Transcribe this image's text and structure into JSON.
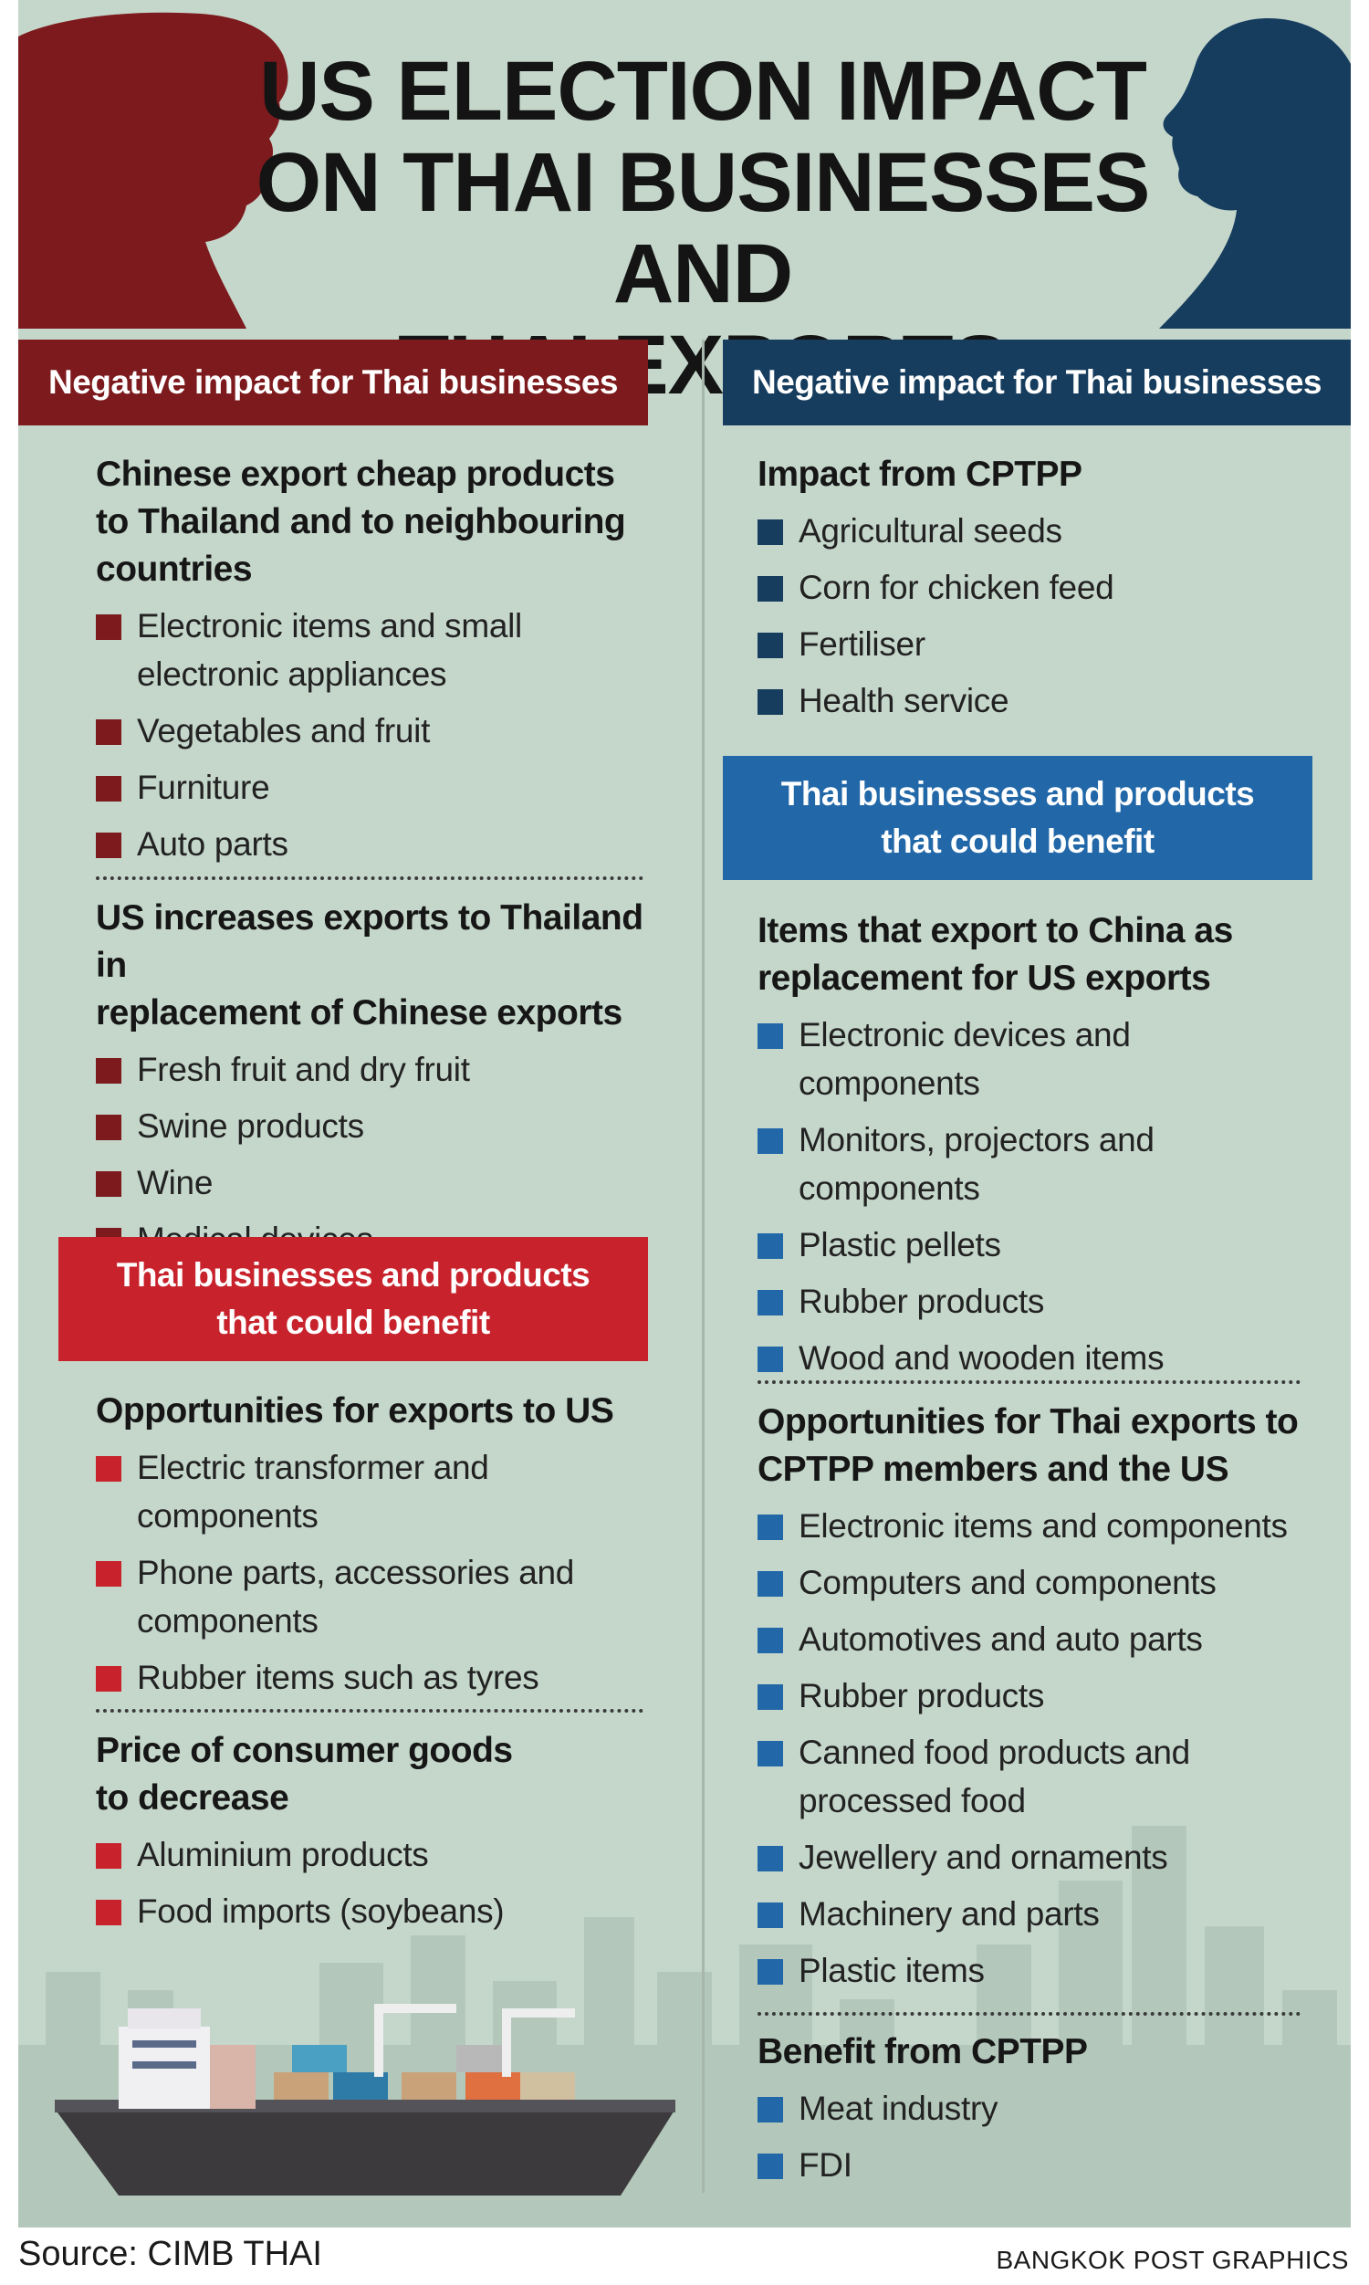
{
  "title": {
    "line1": "US ELECTION IMPACT",
    "line2": "ON THAI BUSINESSES AND",
    "line3": "THAI EXPORTS"
  },
  "colors": {
    "background": "#c5d7cb",
    "red_dark": "#7d1a1d",
    "red_bright": "#c8232c",
    "blue_dark": "#163d5e",
    "blue_bright": "#2268a8"
  },
  "left": {
    "negative_banner": "Negative impact for Thai businesses",
    "group1": {
      "heading_lines": [
        "Chinese export cheap products",
        "to Thailand and to neighbouring",
        "countries"
      ],
      "items": [
        [
          "Electronic items and small",
          "electronic appliances"
        ],
        [
          "Vegetables and fruit"
        ],
        [
          "Furniture"
        ],
        [
          "Auto parts"
        ]
      ]
    },
    "group2": {
      "heading_lines": [
        "US increases exports to Thailand in",
        "replacement of Chinese exports"
      ],
      "items": [
        [
          "Fresh fruit and dry fruit"
        ],
        [
          "Swine products"
        ],
        [
          "Wine"
        ],
        [
          "Medical devices"
        ]
      ]
    },
    "benefit_banner": [
      "Thai businesses and products",
      "that could benefit"
    ],
    "group3": {
      "heading_lines": [
        "Opportunities for exports to US"
      ],
      "items": [
        [
          "Electric transformer and",
          "components"
        ],
        [
          "Phone parts, accessories and",
          "components"
        ],
        [
          "Rubber items such as tyres"
        ]
      ]
    },
    "group4": {
      "heading_lines": [
        "Price of consumer goods",
        "to decrease"
      ],
      "items": [
        [
          "Aluminium products"
        ],
        [
          "Food imports (soybeans)"
        ]
      ]
    }
  },
  "right": {
    "negative_banner": "Negative impact for Thai businesses",
    "group1": {
      "heading_lines": [
        "Impact from CPTPP"
      ],
      "items": [
        [
          "Agricultural seeds"
        ],
        [
          "Corn for chicken feed"
        ],
        [
          "Fertiliser"
        ],
        [
          "Health service"
        ]
      ]
    },
    "benefit_banner": [
      "Thai businesses and products",
      "that could benefit"
    ],
    "group2": {
      "heading_lines": [
        "Items that export to China as",
        "replacement for US exports"
      ],
      "items": [
        [
          "Electronic devices and",
          "components"
        ],
        [
          "Monitors, projectors and",
          "components"
        ],
        [
          "Plastic pellets"
        ],
        [
          "Rubber products"
        ],
        [
          "Wood and wooden items"
        ]
      ]
    },
    "group3": {
      "heading_lines": [
        "Opportunities for Thai exports to",
        "CPTPP members and the US"
      ],
      "items": [
        [
          "Electronic items and components"
        ],
        [
          "Computers and components"
        ],
        [
          "Automotives and auto parts"
        ],
        [
          "Rubber products"
        ],
        [
          "Canned food products and",
          "processed food"
        ],
        [
          "Jewellery and ornaments"
        ],
        [
          "Machinery and parts"
        ],
        [
          "Plastic items"
        ]
      ]
    },
    "group4": {
      "heading_lines": [
        "Benefit from CPTPP"
      ],
      "items": [
        [
          "Meat industry"
        ],
        [
          "FDI"
        ]
      ]
    }
  },
  "footer": {
    "source": "Source: CIMB THAI",
    "credit": "BANGKOK POST GRAPHICS"
  }
}
